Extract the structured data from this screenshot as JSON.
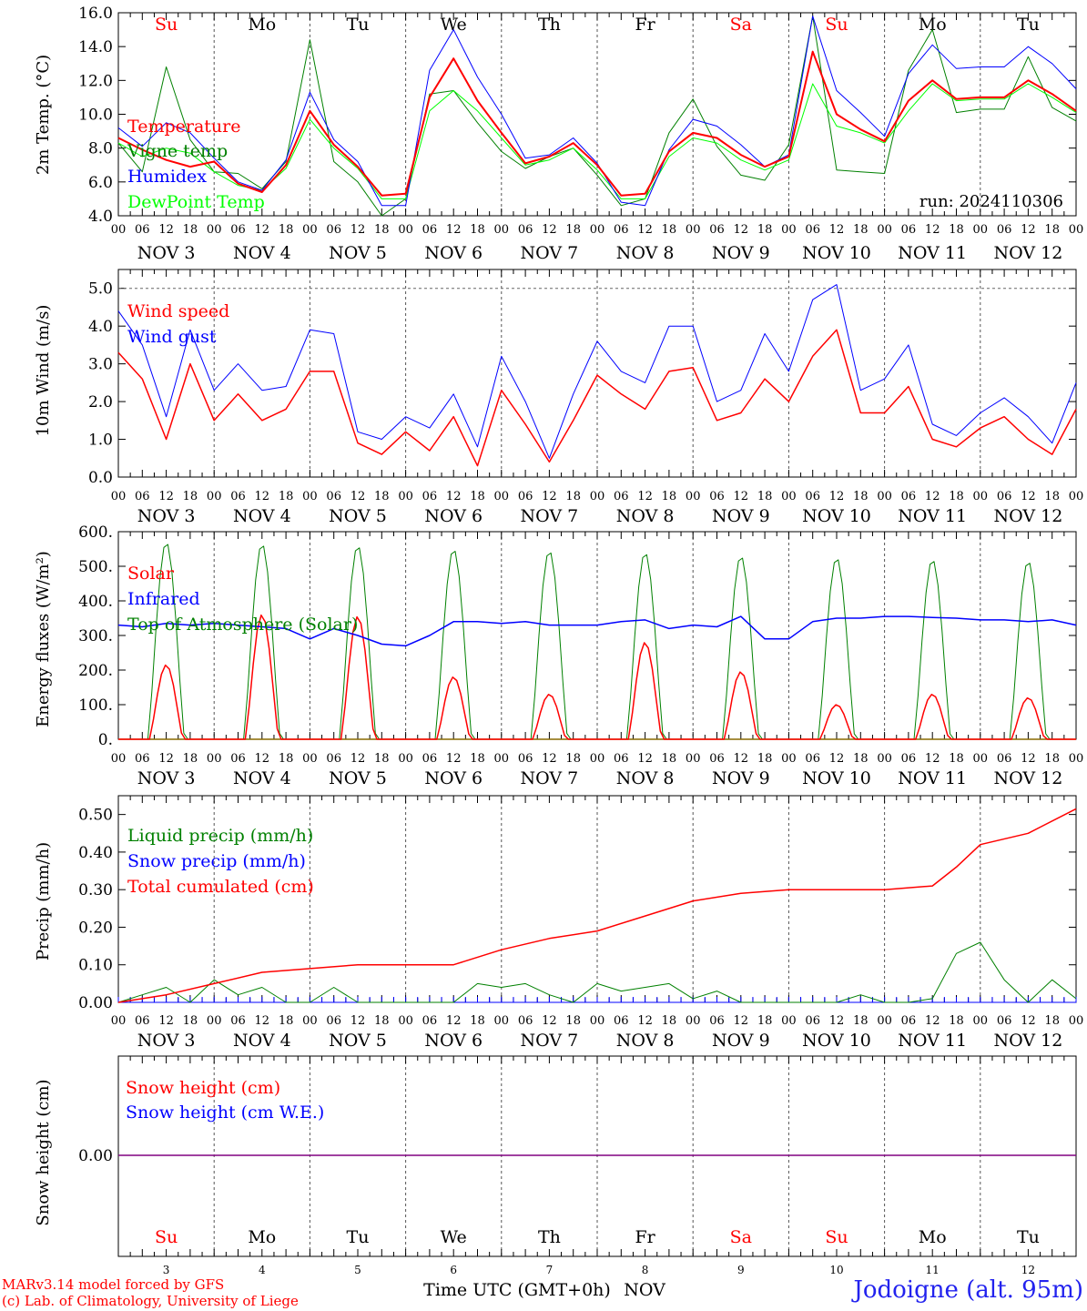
{
  "header": {
    "run_label": "run: 2024110306",
    "days": [
      "Su",
      "Mo",
      "Tu",
      "We",
      "Th",
      "Fr",
      "Sa",
      "Su",
      "Mo",
      "Tu"
    ],
    "weekend_days": [
      0,
      6,
      7
    ],
    "dates": [
      "NOV  3",
      "NOV  4",
      "NOV  5",
      "NOV  6",
      "NOV  7",
      "NOV  8",
      "NOV  9",
      "NOV 10",
      "NOV 11",
      "NOV 12"
    ],
    "hour_ticks": [
      "00",
      "06",
      "12",
      "18"
    ],
    "end_hour_tick": "00"
  },
  "colors": {
    "red": "#ff0000",
    "green": "#008000",
    "blue": "#0000ff",
    "lime": "#00ff00",
    "purple": "#800080",
    "footer_blue": "#2222ee"
  },
  "footer": {
    "line1": "MARv3.14 model forced by GFS",
    "line2": "(c) Lab. of Climatology, University of Liege",
    "x_title": "Time UTC (GMT+0h)",
    "month": "NOV",
    "day_numbers": [
      "3",
      "4",
      "5",
      "6",
      "7",
      "8",
      "9",
      "10",
      "11",
      "12"
    ],
    "station": "Jodoigne (alt. 95m)"
  },
  "chart_data": [
    {
      "type": "line",
      "ylabel": "2m Temp. (°C)",
      "ylim": [
        4,
        16
      ],
      "yticks": [
        4,
        6,
        8,
        10,
        12,
        14,
        16
      ],
      "ytick_labels": [
        "4.0",
        "6.0",
        "8.0",
        "10.0",
        "12.0",
        "14.0",
        "16.0"
      ],
      "x_unit": "hours since Nov 3 00 UTC",
      "xlim": [
        0,
        240
      ],
      "series": [
        {
          "name": "Temperature",
          "color": "#ff0000",
          "x": [
            0,
            6,
            12,
            18,
            24,
            30,
            36,
            42,
            48,
            54,
            60,
            66,
            72,
            78,
            84,
            90,
            96,
            102,
            108,
            114,
            120,
            126,
            132,
            138,
            144,
            150,
            156,
            162,
            168,
            174,
            180,
            186,
            192,
            198,
            204,
            210,
            216,
            222,
            228,
            234,
            240
          ],
          "y": [
            8.6,
            7.9,
            7.3,
            6.9,
            7.2,
            5.9,
            5.4,
            7.0,
            10.2,
            8.2,
            6.9,
            5.2,
            5.3,
            11.0,
            13.3,
            10.8,
            8.9,
            7.1,
            7.5,
            8.3,
            7.0,
            5.2,
            5.3,
            7.8,
            8.9,
            8.6,
            7.6,
            6.9,
            7.5,
            13.7,
            10.0,
            9.1,
            8.4,
            10.8,
            12.0,
            10.9,
            11.0,
            11.0,
            12.0,
            11.2,
            10.2
          ]
        },
        {
          "name": "Vigne temp",
          "color": "#008000",
          "x": [
            0,
            6,
            12,
            18,
            24,
            30,
            36,
            42,
            48,
            54,
            60,
            66,
            72,
            78,
            84,
            90,
            96,
            102,
            108,
            114,
            120,
            126,
            132,
            138,
            144,
            150,
            156,
            162,
            168,
            174,
            180,
            186,
            192,
            198,
            204,
            210,
            216,
            222,
            228,
            234,
            240
          ],
          "y": [
            8.3,
            6.6,
            12.8,
            8.5,
            6.6,
            6.5,
            5.6,
            7.2,
            14.4,
            7.2,
            6.0,
            4.0,
            5.0,
            11.2,
            11.4,
            9.5,
            7.8,
            6.8,
            7.5,
            8.0,
            6.4,
            4.6,
            5.0,
            8.9,
            10.9,
            8.1,
            6.4,
            6.1,
            8.2,
            15.8,
            6.7,
            6.6,
            6.5,
            12.6,
            15.0,
            10.1,
            10.3,
            10.3,
            13.4,
            10.4,
            9.6
          ]
        },
        {
          "name": "Humidex",
          "color": "#0000ff",
          "x": [
            0,
            6,
            12,
            18,
            24,
            30,
            36,
            42,
            48,
            54,
            60,
            66,
            72,
            78,
            84,
            90,
            96,
            102,
            108,
            114,
            120,
            126,
            132,
            138,
            144,
            150,
            156,
            162,
            168,
            174,
            180,
            186,
            192,
            198,
            204,
            210,
            216,
            222,
            228,
            234,
            240
          ],
          "y": [
            9.2,
            8.1,
            9.5,
            8.9,
            7.4,
            6.0,
            5.5,
            7.3,
            11.3,
            8.5,
            7.2,
            4.6,
            4.6,
            12.6,
            15.0,
            12.2,
            10.0,
            7.4,
            7.6,
            8.6,
            7.1,
            4.8,
            4.6,
            7.9,
            9.7,
            9.3,
            8.2,
            6.9,
            7.6,
            15.8,
            11.4,
            10.1,
            8.7,
            12.4,
            14.1,
            12.7,
            12.8,
            12.8,
            14.0,
            13.0,
            11.5
          ]
        },
        {
          "name": "DewPoint Temp",
          "color": "#00ff00",
          "x": [
            0,
            6,
            12,
            18,
            24,
            30,
            36,
            42,
            48,
            54,
            60,
            66,
            72,
            78,
            84,
            90,
            96,
            102,
            108,
            114,
            120,
            126,
            132,
            138,
            144,
            150,
            156,
            162,
            168,
            174,
            180,
            186,
            192,
            198,
            204,
            210,
            216,
            222,
            228,
            234,
            240
          ],
          "y": [
            8.3,
            7.5,
            8.0,
            7.7,
            6.6,
            5.8,
            5.5,
            6.8,
            9.7,
            8.0,
            6.8,
            5.0,
            5.0,
            10.2,
            11.4,
            10.2,
            8.6,
            7.0,
            7.3,
            8.0,
            6.7,
            5.0,
            5.0,
            7.5,
            8.6,
            8.3,
            7.3,
            6.7,
            7.3,
            11.8,
            9.3,
            8.9,
            8.3,
            10.2,
            11.8,
            10.8,
            10.9,
            10.9,
            11.8,
            11.0,
            10.1
          ]
        }
      ]
    },
    {
      "type": "line",
      "ylabel": "10m Wind (m/s)",
      "ylim": [
        0,
        5.5
      ],
      "yticks": [
        0,
        1,
        2,
        3,
        4,
        5
      ],
      "ytick_labels": [
        "0.0",
        "1.0",
        "2.0",
        "3.0",
        "4.0",
        "5.0"
      ],
      "reference_line": 5,
      "xlim": [
        0,
        240
      ],
      "series": [
        {
          "name": "Wind speed",
          "color": "#ff0000",
          "x": [
            0,
            6,
            12,
            18,
            24,
            30,
            36,
            42,
            48,
            54,
            60,
            66,
            72,
            78,
            84,
            90,
            96,
            102,
            108,
            114,
            120,
            126,
            132,
            138,
            144,
            150,
            156,
            162,
            168,
            174,
            180,
            186,
            192,
            198,
            204,
            210,
            216,
            222,
            228,
            234,
            240
          ],
          "y": [
            3.3,
            2.6,
            1.0,
            3.0,
            1.5,
            2.2,
            1.5,
            1.8,
            2.8,
            2.8,
            0.9,
            0.6,
            1.2,
            0.7,
            1.6,
            0.3,
            2.3,
            1.4,
            0.4,
            1.5,
            2.7,
            2.2,
            1.8,
            2.8,
            2.9,
            1.5,
            1.7,
            2.6,
            2.0,
            3.2,
            3.9,
            1.7,
            1.7,
            2.4,
            1.0,
            0.8,
            1.3,
            1.6,
            1.0,
            0.6,
            1.8
          ]
        },
        {
          "name": "Wind gust",
          "color": "#0000ff",
          "x": [
            0,
            6,
            12,
            18,
            24,
            30,
            36,
            42,
            48,
            54,
            60,
            66,
            72,
            78,
            84,
            90,
            96,
            102,
            108,
            114,
            120,
            126,
            132,
            138,
            144,
            150,
            156,
            162,
            168,
            174,
            180,
            186,
            192,
            198,
            204,
            210,
            216,
            222,
            228,
            234,
            240
          ],
          "y": [
            4.4,
            3.5,
            1.6,
            3.9,
            2.3,
            3.0,
            2.3,
            2.4,
            3.9,
            3.8,
            1.2,
            1.0,
            1.6,
            1.3,
            2.2,
            0.8,
            3.2,
            2.0,
            0.5,
            2.2,
            3.6,
            2.8,
            2.5,
            4.0,
            4.0,
            2.0,
            2.3,
            3.8,
            2.8,
            4.7,
            5.1,
            2.3,
            2.6,
            3.5,
            1.4,
            1.1,
            1.7,
            2.1,
            1.6,
            0.9,
            2.5
          ]
        }
      ]
    },
    {
      "type": "line",
      "ylabel": "Energy fluxes (W/m²)",
      "ylim": [
        0,
        600
      ],
      "yticks": [
        0,
        100,
        200,
        300,
        400,
        500,
        600
      ],
      "ytick_labels": [
        "0.",
        "100.",
        "200.",
        "300.",
        "400.",
        "500.",
        "600."
      ],
      "xlim": [
        0,
        240
      ],
      "series": [
        {
          "name": "Solar",
          "color": "#ff0000",
          "peaks": [
            215,
            360,
            355,
            180,
            130,
            280,
            195,
            100,
            130,
            120
          ]
        },
        {
          "name": "Infrared",
          "color": "#0000ff",
          "x": [
            0,
            6,
            12,
            18,
            24,
            30,
            36,
            42,
            48,
            54,
            60,
            66,
            72,
            78,
            84,
            90,
            96,
            102,
            108,
            114,
            120,
            126,
            132,
            138,
            144,
            150,
            156,
            162,
            168,
            174,
            180,
            186,
            192,
            198,
            204,
            210,
            216,
            222,
            228,
            234,
            240
          ],
          "y": [
            330,
            325,
            335,
            330,
            335,
            330,
            325,
            320,
            290,
            320,
            300,
            275,
            270,
            300,
            340,
            340,
            335,
            340,
            330,
            330,
            330,
            340,
            345,
            320,
            330,
            325,
            355,
            290,
            290,
            340,
            350,
            350,
            355,
            355,
            352,
            350,
            345,
            345,
            340,
            345,
            330
          ]
        },
        {
          "name": "Top of Atmosphere (Solar)",
          "color": "#008000",
          "peaks": [
            570,
            565,
            560,
            550,
            545,
            540,
            530,
            525,
            520,
            515
          ]
        }
      ]
    },
    {
      "type": "line",
      "ylabel": "Precip (mm/h)",
      "ylim": [
        0,
        0.55
      ],
      "yticks": [
        0,
        0.1,
        0.2,
        0.3,
        0.4,
        0.5
      ],
      "ytick_labels": [
        "0.00",
        "0.10",
        "0.20",
        "0.30",
        "0.40",
        "0.50"
      ],
      "xlim": [
        0,
        240
      ],
      "series": [
        {
          "name": "Liquid precip (mm/h)",
          "color": "#008000",
          "x": [
            0,
            6,
            12,
            18,
            24,
            30,
            36,
            42,
            48,
            54,
            60,
            66,
            72,
            78,
            84,
            90,
            96,
            102,
            108,
            114,
            120,
            126,
            132,
            138,
            144,
            150,
            156,
            162,
            168,
            174,
            180,
            186,
            192,
            198,
            204,
            210,
            216,
            222,
            228,
            234,
            240
          ],
          "y": [
            0.0,
            0.02,
            0.04,
            0.0,
            0.06,
            0.02,
            0.04,
            0.0,
            0.0,
            0.04,
            0.0,
            0.0,
            0.0,
            0.0,
            0.0,
            0.05,
            0.04,
            0.05,
            0.02,
            0.0,
            0.05,
            0.03,
            0.04,
            0.05,
            0.01,
            0.03,
            0.0,
            0.0,
            0.0,
            0.0,
            0.0,
            0.02,
            0.0,
            0.0,
            0.01,
            0.13,
            0.16,
            0.06,
            0.0,
            0.06,
            0.01
          ]
        },
        {
          "name": "Snow precip (mm/h)",
          "color": "#0000ff",
          "x": [
            0,
            240
          ],
          "y": [
            0,
            0
          ]
        },
        {
          "name": "Total cumulated (cm)",
          "color": "#ff0000",
          "x": [
            0,
            12,
            24,
            36,
            48,
            60,
            72,
            84,
            96,
            108,
            120,
            132,
            144,
            156,
            168,
            180,
            192,
            204,
            210,
            216,
            228,
            240
          ],
          "y": [
            0.0,
            0.02,
            0.05,
            0.08,
            0.09,
            0.1,
            0.1,
            0.1,
            0.14,
            0.17,
            0.19,
            0.23,
            0.27,
            0.29,
            0.3,
            0.3,
            0.3,
            0.31,
            0.36,
            0.42,
            0.45,
            0.515
          ]
        }
      ]
    },
    {
      "type": "line",
      "ylabel": "Snow height (cm)",
      "yticks": [
        0
      ],
      "ytick_labels": [
        "0.00"
      ],
      "xlim": [
        0,
        240
      ],
      "series": [
        {
          "name": "Snow height (cm)",
          "color": "#ff0000",
          "x": [
            0,
            240
          ],
          "y": [
            0,
            0
          ]
        },
        {
          "name": "Snow height (cm W.E.)",
          "color": "#0000ff",
          "x": [
            0,
            240
          ],
          "y": [
            0,
            0
          ]
        }
      ]
    }
  ]
}
